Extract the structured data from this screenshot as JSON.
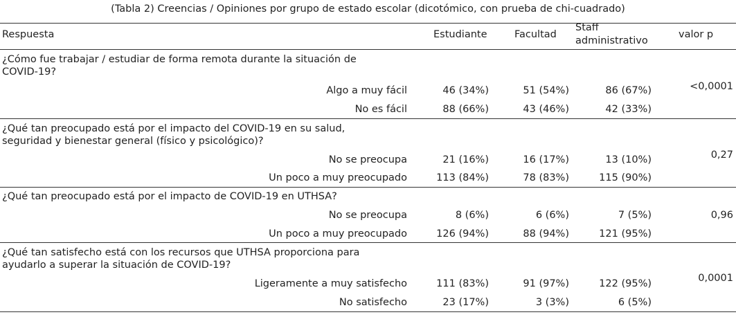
{
  "caption": "(Tabla 2) Creencias / Opiniones por grupo de estado escolar (dicotómico, con prueba de chi-cuadrado)",
  "headers": {
    "respuesta": "Respuesta",
    "estudiante": "Estudiante",
    "facultad": "Facultad",
    "staff_line1": "Staff",
    "staff_line2": "administrativo",
    "pvalue": "valor p"
  },
  "sections": [
    {
      "question": "¿Cómo fue trabajar / estudiar de forma remota durante la situación de COVID-19?",
      "pvalue": "<0,0001",
      "rows": [
        {
          "label": "Algo a muy fácil",
          "estudiante": "46 (34%)",
          "facultad": "51 (54%)",
          "staff": "86 (67%)"
        },
        {
          "label": "No es fácil",
          "estudiante": "88 (66%)",
          "facultad": "43 (46%)",
          "staff": "42 (33%)"
        }
      ]
    },
    {
      "question": "¿Qué tan preocupado está por el impacto del COVID-19 en su salud, seguridad y bienestar general (físico y psicológico)?",
      "pvalue": "0,27",
      "rows": [
        {
          "label": "No se preocupa",
          "estudiante": "21 (16%)",
          "facultad": "16 (17%)",
          "staff": "13 (10%)"
        },
        {
          "label": "Un poco a muy preocupado",
          "estudiante": "113 (84%)",
          "facultad": "78 (83%)",
          "staff": "115 (90%)"
        }
      ]
    },
    {
      "question": "¿Qué tan preocupado está por el impacto de COVID-19 en UTHSA?",
      "pvalue": "0,96",
      "rows": [
        {
          "label": "No se preocupa",
          "estudiante": "8 (6%)",
          "facultad": "6 (6%)",
          "staff": "7 (5%)"
        },
        {
          "label": "Un poco a muy preocupado",
          "estudiante": "126 (94%)",
          "facultad": "88 (94%)",
          "staff": "121 (95%)"
        }
      ]
    },
    {
      "question": "¿Qué tan satisfecho está con los recursos que UTHSA proporciona para ayudarlo a superar la situación de COVID-19?",
      "pvalue": "0,0001",
      "rows": [
        {
          "label": "Ligeramente a muy satisfecho",
          "estudiante": "111 (83%)",
          "facultad": "91 (97%)",
          "staff": "122 (95%)"
        },
        {
          "label": "No satisfecho",
          "estudiante": "23 (17%)",
          "facultad": "3 (3%)",
          "staff": "6 (5%)"
        }
      ]
    }
  ]
}
